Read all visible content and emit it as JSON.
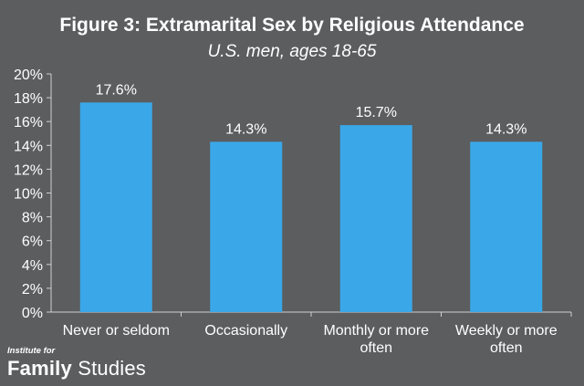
{
  "chart_data": {
    "type": "bar",
    "title": "Figure 3: Extramarital Sex by Religious Attendance",
    "subtitle": "U.S. men, ages 18-65",
    "categories": [
      [
        "Never or seldom"
      ],
      [
        "Occasionally"
      ],
      [
        "Monthly or more",
        "often"
      ],
      [
        "Weekly or more",
        "often"
      ]
    ],
    "values": [
      17.6,
      14.3,
      15.7,
      14.3
    ],
    "data_labels": [
      "17.6%",
      "14.3%",
      "15.7%",
      "14.3%"
    ],
    "ylim": [
      0,
      20
    ],
    "yticks": [
      0,
      2,
      4,
      6,
      8,
      10,
      12,
      14,
      16,
      18,
      20
    ],
    "ytick_labels": [
      "0%",
      "2%",
      "4%",
      "6%",
      "8%",
      "10%",
      "12%",
      "14%",
      "16%",
      "18%",
      "20%"
    ],
    "xlabel": "",
    "ylabel": "",
    "bar_color": "#3aa8e8",
    "axis_color": "#cfd0d1",
    "text_color": "#ffffff",
    "background": "#5b5d5f"
  },
  "branding": {
    "small": "Institute for",
    "big_bold": "Family",
    "big_rest": " Studies"
  }
}
